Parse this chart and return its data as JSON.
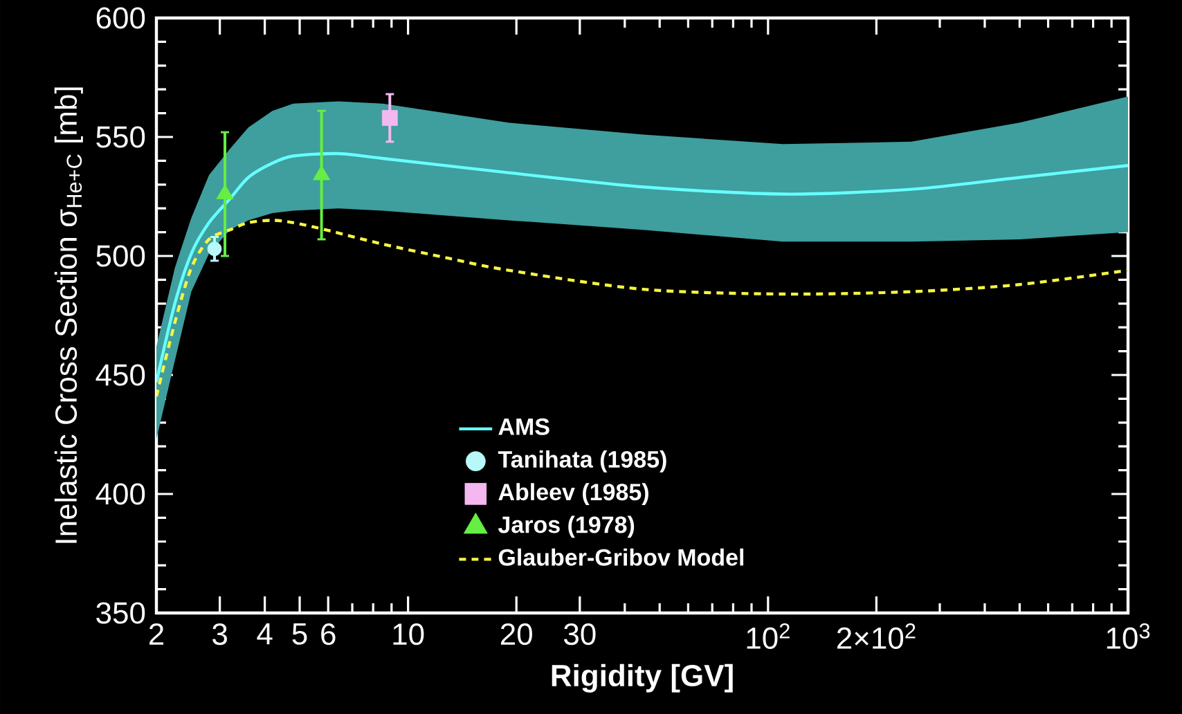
{
  "chart_data": {
    "type": "line",
    "xlabel": "Rigidity [GV]",
    "ylabel": "Inelastic Cross Section  σ$_{He+C}$ [mb]",
    "log": "x",
    "xlim": [
      2,
      1000
    ],
    "ylim": [
      350,
      600
    ],
    "xticks": [
      2,
      3,
      4,
      5,
      6,
      {
        "value": 7,
        "label": null
      },
      {
        "value": 8,
        "label": null
      },
      {
        "value": 9,
        "label": null
      },
      10,
      20,
      30,
      {
        "value": 40,
        "label": null
      },
      {
        "value": 50,
        "label": null
      },
      {
        "value": 60,
        "label": null
      },
      {
        "value": 70,
        "label": null
      },
      {
        "value": 80,
        "label": null
      },
      {
        "value": 90,
        "label": null
      },
      {
        "value": 100,
        "label": "10$^{2}$"
      },
      {
        "value": 200,
        "label": "2×10$^{2}$"
      },
      {
        "value": 300,
        "label": null
      },
      {
        "value": 400,
        "label": null
      },
      {
        "value": 500,
        "label": null
      },
      {
        "value": 600,
        "label": null
      },
      {
        "value": 700,
        "label": null
      },
      {
        "value": 800,
        "label": null
      },
      {
        "value": 900,
        "label": null
      },
      {
        "value": 1000,
        "label": "10$^{3}$"
      }
    ],
    "yticks": [
      350,
      {
        "value": 360,
        "label": null
      },
      {
        "value": 370,
        "label": null
      },
      {
        "value": 380,
        "label": null
      },
      {
        "value": 390,
        "label": null
      },
      400,
      {
        "value": 410,
        "label": null
      },
      {
        "value": 420,
        "label": null
      },
      {
        "value": 430,
        "label": null
      },
      {
        "value": 440,
        "label": null
      },
      450,
      {
        "value": 460,
        "label": null
      },
      {
        "value": 470,
        "label": null
      },
      {
        "value": 480,
        "label": null
      },
      {
        "value": 490,
        "label": null
      },
      500,
      {
        "value": 510,
        "label": null
      },
      {
        "value": 520,
        "label": null
      },
      {
        "value": 530,
        "label": null
      },
      {
        "value": 540,
        "label": null
      },
      550,
      {
        "value": 560,
        "label": null
      },
      {
        "value": 570,
        "label": null
      },
      {
        "value": 580,
        "label": null
      },
      {
        "value": 590,
        "label": null
      },
      600
    ],
    "grid": false,
    "legend": "bottom",
    "series": [
      {
        "name": "AMS",
        "color": "#66ffff",
        "marker": "none",
        "line_style": "solid",
        "x": [
          2,
          2.25,
          2.5,
          2.8,
          3.2,
          3.6,
          4.2,
          4.8,
          6.4,
          8.5,
          19,
          45,
          110,
          250,
          500,
          1000
        ],
        "values": [
          447,
          480,
          501,
          514,
          524,
          533,
          539,
          542,
          543,
          541,
          535,
          529,
          526,
          528,
          533,
          538
        ],
        "upper": [
          462,
          495,
          516,
          534,
          545,
          554,
          561,
          564,
          565,
          564,
          556,
          551,
          547,
          548,
          556,
          567
        ],
        "lower": [
          423,
          456,
          485,
          501,
          511,
          515,
          518,
          519,
          520,
          519,
          515,
          511,
          506,
          506,
          507,
          510
        ]
      },
      {
        "name": "Tanihata (1985)",
        "type": "scatter",
        "color": "#b8f8f8",
        "marker": "circle",
        "x": [
          2.9
        ],
        "values": [
          503
        ],
        "errors": [
          5
        ]
      },
      {
        "name": "Ableev (1985)",
        "type": "scatter",
        "color": "#f4b8f0",
        "marker": "square",
        "x": [
          8.9
        ],
        "values": [
          558
        ],
        "errors": [
          10
        ]
      },
      {
        "name": "Jaros (1978)",
        "type": "scatter",
        "color": "#66ee44",
        "marker": "triangle",
        "x": [
          3.1,
          5.75
        ],
        "values": [
          526,
          534
        ],
        "errors": [
          26,
          27
        ]
      },
      {
        "name": "Glauber-Gribov Model",
        "color": "#f5f542",
        "marker": "none",
        "line_style": "dashed",
        "x": [
          2,
          2.25,
          2.5,
          2.8,
          3.2,
          3.6,
          4.2,
          4.8,
          5.9,
          8.5,
          13,
          19,
          45,
          110,
          250,
          500,
          1000
        ],
        "values": [
          441,
          472,
          495,
          507,
          511,
          514,
          515,
          514,
          511,
          505,
          499,
          494,
          486,
          484,
          485,
          488,
          494
        ]
      }
    ]
  }
}
